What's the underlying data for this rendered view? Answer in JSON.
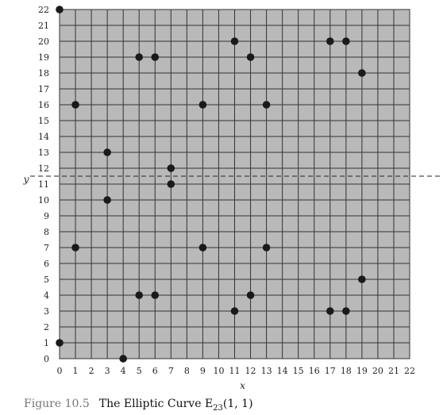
{
  "chart_data": {
    "type": "scatter",
    "xlabel": "x",
    "ylabel": "y",
    "xlim": [
      0,
      22
    ],
    "ylim": [
      0,
      22
    ],
    "grid": true,
    "x_ticks": [
      0,
      1,
      2,
      3,
      4,
      5,
      6,
      7,
      8,
      9,
      10,
      11,
      12,
      13,
      14,
      15,
      16,
      17,
      18,
      19,
      20,
      21,
      22
    ],
    "y_ticks": [
      0,
      1,
      2,
      3,
      4,
      5,
      6,
      7,
      8,
      9,
      10,
      11,
      12,
      13,
      14,
      15,
      16,
      17,
      18,
      19,
      20,
      21,
      22
    ],
    "symmetry_line_y": 11.5,
    "points": [
      [
        0,
        1
      ],
      [
        0,
        22
      ],
      [
        1,
        7
      ],
      [
        1,
        16
      ],
      [
        3,
        10
      ],
      [
        3,
        13
      ],
      [
        4,
        0
      ],
      [
        5,
        4
      ],
      [
        5,
        19
      ],
      [
        6,
        4
      ],
      [
        6,
        19
      ],
      [
        7,
        11
      ],
      [
        7,
        12
      ],
      [
        9,
        7
      ],
      [
        9,
        16
      ],
      [
        11,
        3
      ],
      [
        11,
        20
      ],
      [
        12,
        4
      ],
      [
        12,
        19
      ],
      [
        13,
        7
      ],
      [
        13,
        16
      ],
      [
        17,
        3
      ],
      [
        17,
        20
      ],
      [
        18,
        3
      ],
      [
        18,
        20
      ],
      [
        19,
        5
      ],
      [
        19,
        18
      ]
    ]
  },
  "caption": {
    "figure_number": "Figure 10.5",
    "title_main": "The Elliptic Curve E",
    "title_sub": "23",
    "title_args": "(1, 1)"
  }
}
